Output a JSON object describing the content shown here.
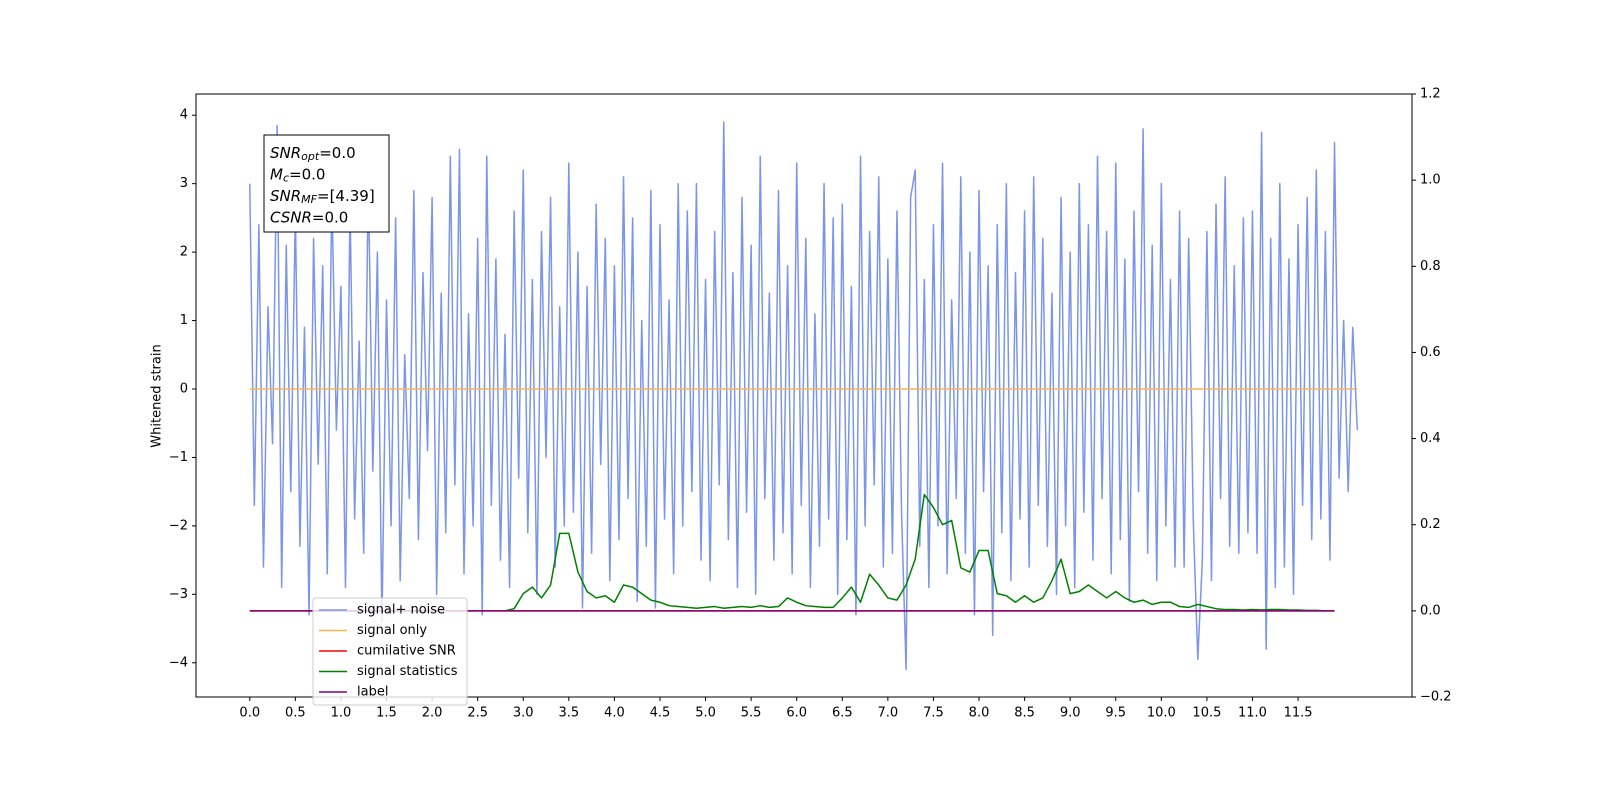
{
  "chart_data": {
    "type": "line",
    "ylabel": "Whitened strain",
    "xlim": [
      -0.59,
      12.75
    ],
    "ylim": [
      -4.5,
      4.31
    ],
    "y2lim": [
      -0.2,
      1.2
    ],
    "xticks": [
      {
        "value": 0,
        "label": "0.0"
      },
      {
        "value": 0.5,
        "label": "0.5"
      },
      {
        "value": 1,
        "label": "1.0"
      },
      {
        "value": 1.5,
        "label": "1.5"
      },
      {
        "value": 2,
        "label": "2.0"
      },
      {
        "value": 2.5,
        "label": "2.5"
      },
      {
        "value": 3,
        "label": "3.0"
      },
      {
        "value": 3.5,
        "label": "3.5"
      },
      {
        "value": 4,
        "label": "4.0"
      },
      {
        "value": 4.5,
        "label": "4.5"
      },
      {
        "value": 5,
        "label": "5.0"
      },
      {
        "value": 5.5,
        "label": "5.5"
      },
      {
        "value": 6,
        "label": "6.0"
      },
      {
        "value": 6.5,
        "label": "6.5"
      },
      {
        "value": 7,
        "label": "7.0"
      },
      {
        "value": 7.5,
        "label": "7.5"
      },
      {
        "value": 8,
        "label": "8.0"
      },
      {
        "value": 8.5,
        "label": "8.5"
      },
      {
        "value": 9,
        "label": "9.0"
      },
      {
        "value": 9.5,
        "label": "9.5"
      },
      {
        "value": 10,
        "label": "10.0"
      },
      {
        "value": 10.5,
        "label": "10.5"
      },
      {
        "value": 11,
        "label": "11.0"
      },
      {
        "value": 11.5,
        "label": "11.5"
      }
    ],
    "yticks": [
      {
        "value": -4,
        "label": "−4"
      },
      {
        "value": -3,
        "label": "−3"
      },
      {
        "value": -2,
        "label": "−2"
      },
      {
        "value": -1,
        "label": "−1"
      },
      0,
      1,
      2,
      3,
      4
    ],
    "y2ticks": [
      {
        "value": -0.2,
        "label": "−0.2"
      },
      {
        "value": 0,
        "label": "0.0"
      },
      0.2,
      0.4,
      0.6,
      0.8,
      {
        "value": 1,
        "label": "1.0"
      },
      1.2
    ],
    "grid": false,
    "legend": "lower left",
    "annotation": [
      {
        "text": "SNR",
        "sub": "opt",
        "rest": "=0.0"
      },
      {
        "text": "M",
        "sub": "c",
        "rest": "=0.0"
      },
      {
        "text": "SNR",
        "sub": "MF",
        "rest": "=[4.39]"
      },
      {
        "text": "CSNR",
        "rest": "=0.0"
      }
    ],
    "series": [
      {
        "name": "signal+ noise",
        "color": "#7b96e8",
        "axis": "y",
        "x": [
          0,
          0.05,
          0.1,
          0.15,
          0.2,
          0.25,
          0.3,
          0.35,
          0.4,
          0.45,
          0.5,
          0.55,
          0.6,
          0.65,
          0.7,
          0.75,
          0.8,
          0.85,
          0.9,
          0.95,
          1,
          1.05,
          1.1,
          1.15,
          1.2,
          1.25,
          1.3,
          1.35,
          1.4,
          1.45,
          1.5,
          1.55,
          1.6,
          1.65,
          1.7,
          1.75,
          1.8,
          1.85,
          1.9,
          1.95,
          2,
          2.05,
          2.1,
          2.15,
          2.2,
          2.25,
          2.3,
          2.35,
          2.4,
          2.45,
          2.5,
          2.55,
          2.6,
          2.65,
          2.7,
          2.75,
          2.8,
          2.85,
          2.9,
          2.95,
          3,
          3.05,
          3.1,
          3.15,
          3.2,
          3.25,
          3.3,
          3.35,
          3.4,
          3.45,
          3.5,
          3.55,
          3.6,
          3.65,
          3.7,
          3.75,
          3.8,
          3.85,
          3.9,
          3.95,
          4,
          4.05,
          4.1,
          4.15,
          4.2,
          4.25,
          4.3,
          4.35,
          4.4,
          4.45,
          4.5,
          4.55,
          4.6,
          4.65,
          4.7,
          4.75,
          4.8,
          4.85,
          4.9,
          4.95,
          5,
          5.05,
          5.1,
          5.15,
          5.2,
          5.25,
          5.3,
          5.35,
          5.4,
          5.45,
          5.5,
          5.55,
          5.6,
          5.65,
          5.7,
          5.75,
          5.8,
          5.85,
          5.9,
          5.95,
          6,
          6.05,
          6.1,
          6.15,
          6.2,
          6.25,
          6.3,
          6.35,
          6.4,
          6.45,
          6.5,
          6.55,
          6.6,
          6.65,
          6.7,
          6.75,
          6.8,
          6.85,
          6.9,
          6.95,
          7,
          7.05,
          7.1,
          7.15,
          7.2,
          7.25,
          7.3,
          7.35,
          7.4,
          7.45,
          7.5,
          7.55,
          7.6,
          7.65,
          7.7,
          7.75,
          7.8,
          7.85,
          7.9,
          7.95,
          8,
          8.05,
          8.1,
          8.15,
          8.2,
          8.25,
          8.3,
          8.35,
          8.4,
          8.45,
          8.5,
          8.55,
          8.6,
          8.65,
          8.7,
          8.75,
          8.8,
          8.85,
          8.9,
          8.95,
          9,
          9.05,
          9.1,
          9.15,
          9.2,
          9.25,
          9.3,
          9.35,
          9.4,
          9.45,
          9.5,
          9.55,
          9.6,
          9.65,
          9.7,
          9.75,
          9.8,
          9.85,
          9.9,
          9.95,
          10,
          10.05,
          10.1,
          10.15,
          10.2,
          10.25,
          10.3,
          10.35,
          10.4,
          10.45,
          10.5,
          10.55,
          10.6,
          10.65,
          10.7,
          10.75,
          10.8,
          10.85,
          10.9,
          10.95,
          11,
          11.05,
          11.1,
          11.15,
          11.2,
          11.25,
          11.3,
          11.35,
          11.4,
          11.45,
          11.5,
          11.55,
          11.6,
          11.65,
          11.7,
          11.75,
          11.8,
          11.85,
          11.9,
          11.95,
          12,
          12.05,
          12.1,
          12.15
        ],
        "values": [
          3.0,
          -1.7,
          2.4,
          -2.6,
          1.2,
          -0.8,
          3.85,
          -2.9,
          2.1,
          -1.5,
          2.6,
          -2.3,
          0.9,
          -3.3,
          2.2,
          -1.1,
          1.8,
          -2.7,
          2.9,
          -0.6,
          1.5,
          -2.9,
          2.7,
          -1.9,
          0.7,
          -2.4,
          3.1,
          -1.2,
          2.0,
          -3.4,
          1.3,
          -2.0,
          2.5,
          -2.8,
          0.5,
          -1.6,
          2.9,
          -2.2,
          1.7,
          -0.9,
          2.8,
          -3.0,
          1.4,
          -2.1,
          3.4,
          -1.4,
          3.5,
          -2.7,
          1.1,
          -2.0,
          2.2,
          -3.3,
          3.4,
          -1.7,
          1.9,
          -2.5,
          0.8,
          -2.9,
          2.6,
          -1.3,
          3.2,
          -2.1,
          1.6,
          -3.0,
          2.3,
          -1.0,
          2.8,
          -2.6,
          1.2,
          -2.0,
          3.3,
          -1.8,
          2.0,
          -3.2,
          1.5,
          -2.4,
          2.7,
          -1.1,
          2.2,
          -2.8,
          1.8,
          -2.2,
          3.1,
          -1.6,
          2.5,
          -3.1,
          1.0,
          -2.3,
          2.9,
          -3.2,
          2.4,
          -1.9,
          1.3,
          -2.7,
          3.0,
          -2.0,
          2.6,
          -1.5,
          3.0,
          -2.5,
          1.6,
          -2.8,
          2.3,
          -1.4,
          3.9,
          -2.2,
          1.7,
          -2.9,
          2.8,
          -1.8,
          2.1,
          -3.0,
          3.4,
          -1.6,
          1.4,
          -2.5,
          2.9,
          -2.1,
          1.8,
          -2.7,
          3.3,
          -1.7,
          2.2,
          -2.9,
          1.1,
          -2.3,
          3.0,
          -1.9,
          2.5,
          -3.0,
          2.7,
          -2.2,
          1.5,
          -3.3,
          3.4,
          -2.0,
          2.3,
          -1.4,
          3.1,
          -2.6,
          1.9,
          -2.4,
          2.6,
          -1.8,
          -4.1,
          2.8,
          3.2,
          -2.3,
          1.6,
          -2.9,
          2.4,
          -2.0,
          3.3,
          -2.7,
          1.3,
          -1.6,
          3.1,
          -2.4,
          2.0,
          -3.3,
          2.9,
          -1.5,
          1.8,
          -3.6,
          2.4,
          -2.1,
          3.0,
          -2.8,
          1.7,
          -1.9,
          2.6,
          -2.6,
          3.1,
          -1.7,
          2.2,
          -2.3,
          1.4,
          -3.0,
          2.8,
          -2.0,
          2.0,
          -2.9,
          3.0,
          -1.8,
          2.4,
          -2.5,
          3.4,
          -1.6,
          2.3,
          -2.7,
          3.3,
          -2.2,
          1.9,
          -3.1,
          2.6,
          -1.5,
          3.8,
          -2.4,
          2.1,
          -2.8,
          3.0,
          -2.0,
          1.6,
          -2.6,
          2.6,
          -2.6,
          2.2,
          -1.9,
          -3.95,
          -2.5,
          2.3,
          -2.8,
          2.7,
          -1.6,
          3.1,
          -2.3,
          1.8,
          -2.4,
          2.5,
          -2.1,
          2.6,
          -2.4,
          3.75,
          -3.8,
          2.2,
          -2.9,
          3.0,
          -2.6,
          1.9,
          -3.0,
          2.4,
          -1.7,
          2.8,
          -2.2,
          3.2,
          -1.9,
          2.3,
          -2.5,
          3.6,
          -1.3,
          1.0,
          -1.5,
          0.9,
          -0.6
        ]
      },
      {
        "name": "signal only",
        "color": "#f5b55a",
        "axis": "y",
        "x": [
          0,
          12.15
        ],
        "values": [
          0,
          0
        ]
      },
      {
        "name": "cumilative SNR",
        "color": "#ff0000",
        "axis": "y2",
        "x": [
          0,
          11.9
        ],
        "values": [
          0,
          0
        ]
      },
      {
        "name": "signal statistics",
        "color": "#008000",
        "axis": "y2",
        "x": [
          2.8,
          2.9,
          3.0,
          3.1,
          3.2,
          3.3,
          3.4,
          3.5,
          3.6,
          3.7,
          3.8,
          3.9,
          4.0,
          4.1,
          4.2,
          4.3,
          4.4,
          4.5,
          4.6,
          4.7,
          4.8,
          4.9,
          5.0,
          5.1,
          5.2,
          5.3,
          5.4,
          5.5,
          5.6,
          5.7,
          5.8,
          5.9,
          6.0,
          6.1,
          6.2,
          6.3,
          6.4,
          6.5,
          6.6,
          6.7,
          6.8,
          6.9,
          7.0,
          7.1,
          7.2,
          7.3,
          7.4,
          7.5,
          7.6,
          7.7,
          7.8,
          7.9,
          8.0,
          8.1,
          8.2,
          8.3,
          8.4,
          8.5,
          8.6,
          8.7,
          8.8,
          8.9,
          9.0,
          9.1,
          9.2,
          9.3,
          9.4,
          9.5,
          9.6,
          9.7,
          9.8,
          9.9,
          10.0,
          10.1,
          10.2,
          10.3,
          10.4,
          10.5,
          10.6,
          10.7,
          10.8,
          10.9,
          11.0,
          11.1,
          11.2,
          11.3,
          11.4,
          11.5,
          11.6,
          11.7,
          11.8
        ],
        "values": [
          0,
          0.005,
          0.04,
          0.055,
          0.03,
          0.06,
          0.18,
          0.18,
          0.09,
          0.045,
          0.03,
          0.035,
          0.02,
          0.06,
          0.055,
          0.04,
          0.025,
          0.02,
          0.012,
          0.01,
          0.008,
          0.006,
          0.008,
          0.01,
          0.006,
          0.008,
          0.01,
          0.008,
          0.012,
          0.008,
          0.01,
          0.03,
          0.02,
          0.012,
          0.01,
          0.008,
          0.008,
          0.03,
          0.055,
          0.02,
          0.085,
          0.06,
          0.03,
          0.025,
          0.06,
          0.12,
          0.27,
          0.24,
          0.2,
          0.21,
          0.1,
          0.09,
          0.14,
          0.14,
          0.04,
          0.035,
          0.02,
          0.035,
          0.02,
          0.03,
          0.07,
          0.12,
          0.04,
          0.045,
          0.06,
          0.045,
          0.03,
          0.045,
          0.03,
          0.02,
          0.025,
          0.015,
          0.02,
          0.02,
          0.01,
          0.008,
          0.015,
          0.01,
          0.005,
          0.003,
          0.003,
          0.002,
          0.003,
          0.002,
          0.003,
          0.003,
          0.002,
          0.002,
          0.001,
          0.001,
          0
        ]
      },
      {
        "name": "label",
        "color": "#800080",
        "axis": "y2",
        "x": [
          0,
          11.9
        ],
        "values": [
          0,
          0
        ]
      }
    ]
  }
}
